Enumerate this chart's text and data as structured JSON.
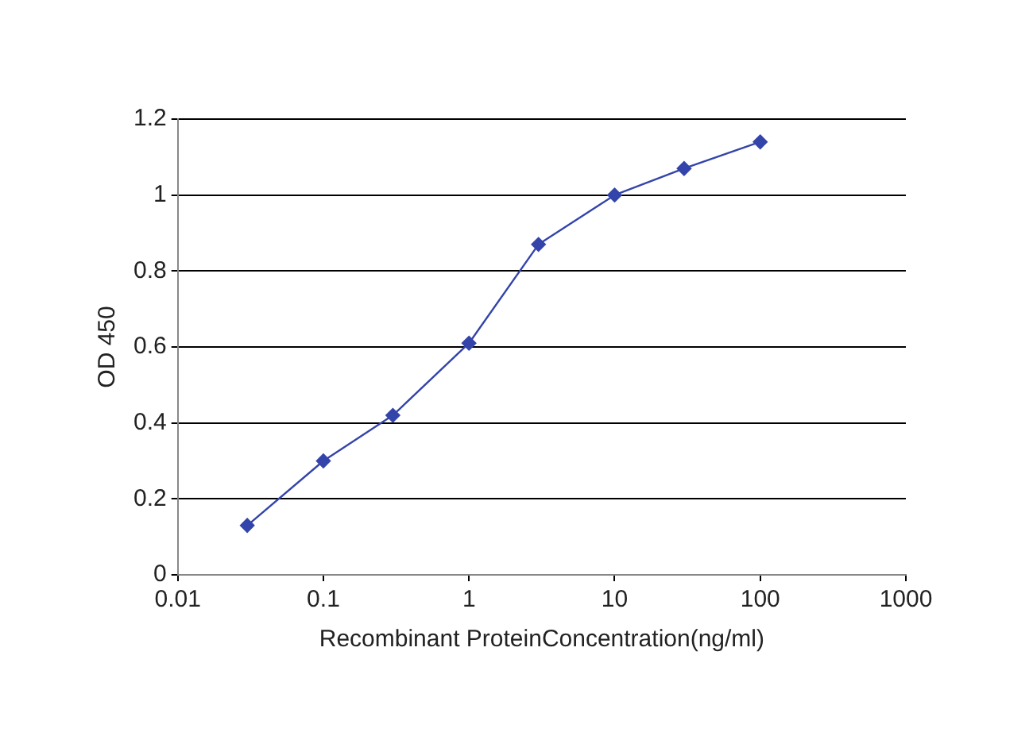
{
  "chart_data": {
    "type": "line",
    "xlabel": "Recombinant ProteinConcentration(ng/ml)",
    "ylabel": "OD 450",
    "log": "x",
    "x": [
      0.03,
      0.1,
      0.3,
      1,
      3,
      10,
      30,
      100
    ],
    "series": [
      {
        "color": "#3344aa",
        "values": [
          0.13,
          0.3,
          0.42,
          0.61,
          0.87,
          1.0,
          1.07,
          1.14
        ]
      }
    ],
    "xlim": [
      0.01,
      1000
    ],
    "xticks": [
      0.01,
      0.1,
      1,
      10,
      100,
      1000
    ],
    "ylim": [
      0,
      1.2
    ],
    "yticks": [
      0,
      0.2,
      0.4,
      0.6,
      0.8,
      1,
      1.2
    ],
    "grid": "y",
    "legend": false,
    "marker": "diamond",
    "line_style": "solid"
  }
}
